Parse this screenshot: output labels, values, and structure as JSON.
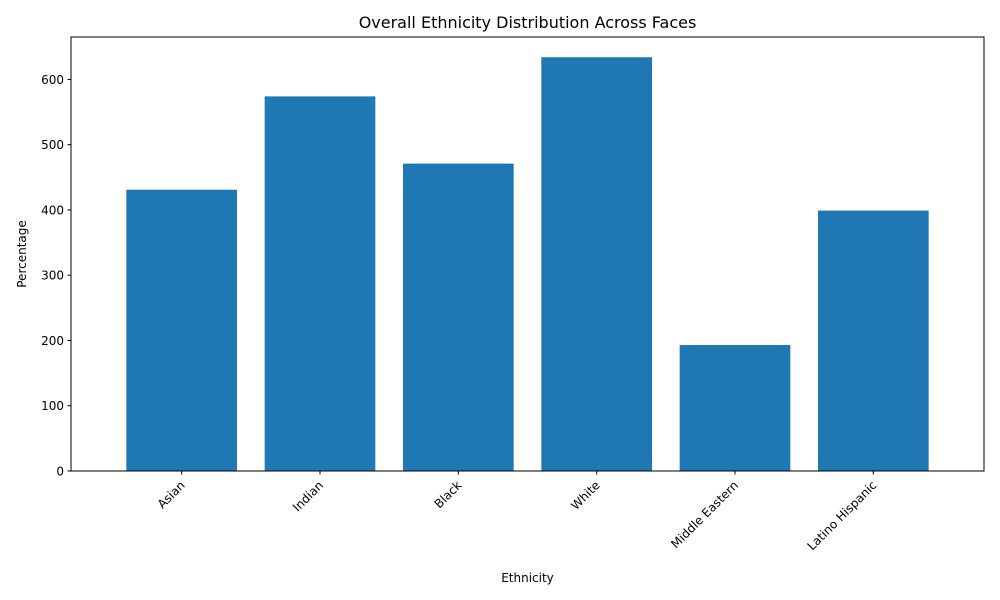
{
  "chart_data": {
    "type": "bar",
    "title": "Overall Ethnicity Distribution Across Faces",
    "xlabel": "Ethnicity",
    "ylabel": "Percentage",
    "categories": [
      "Asian",
      "Indian",
      "Black",
      "White",
      "Middle Eastern",
      "Latino Hispanic"
    ],
    "values": [
      431,
      574,
      471,
      634,
      193,
      399
    ],
    "ylim": [
      0,
      665
    ],
    "yticks": [
      0,
      100,
      200,
      300,
      400,
      500,
      600
    ],
    "ytick_labels": [
      "0",
      "100",
      "200",
      "300",
      "400",
      "500",
      "600"
    ],
    "xtick_rotation_deg": 45,
    "bar_color": "#1f77b4",
    "grid": false,
    "legend": "none"
  }
}
